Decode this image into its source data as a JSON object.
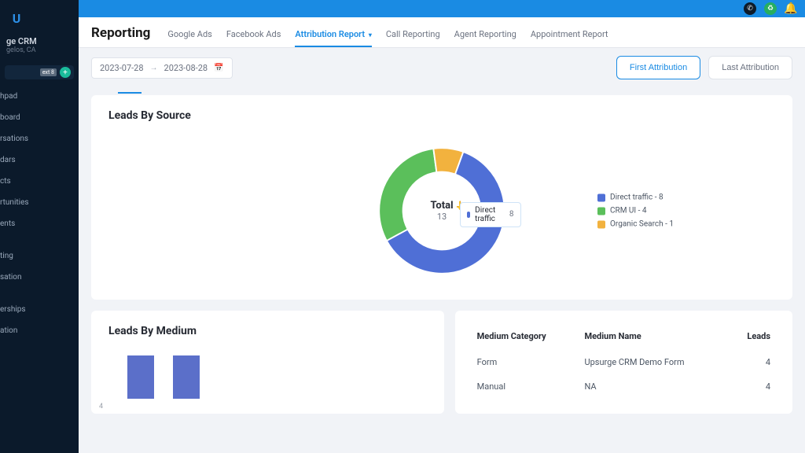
{
  "brand": {
    "initial": "U"
  },
  "account": {
    "name": "ge CRM",
    "location": "gelos, CA",
    "badge": "ext 8"
  },
  "sidebar": {
    "items": [
      {
        "label": "hpad"
      },
      {
        "label": "board"
      },
      {
        "label": "rsations"
      },
      {
        "label": "dars"
      },
      {
        "label": "cts"
      },
      {
        "label": "rtunities"
      },
      {
        "label": "ents"
      }
    ],
    "items2": [
      {
        "label": "ting"
      },
      {
        "label": "sation"
      }
    ],
    "items3": [
      {
        "label": "erships"
      },
      {
        "label": "ation"
      },
      {
        "label": ""
      }
    ]
  },
  "header": {
    "title": "Reporting",
    "tabs": [
      {
        "label": "Google Ads",
        "active": false
      },
      {
        "label": "Facebook Ads",
        "active": false
      },
      {
        "label": "Attribution Report",
        "active": true,
        "chevron": true
      },
      {
        "label": "Call Reporting",
        "active": false
      },
      {
        "label": "Agent Reporting",
        "active": false
      },
      {
        "label": "Appointment Report",
        "active": false
      }
    ]
  },
  "date_range": {
    "from": "2023-07-28",
    "to": "2023-08-28"
  },
  "attribution_buttons": {
    "first": "First Attribution",
    "last": "Last Attribution"
  },
  "leads_by_source": {
    "title": "Leads By Source",
    "type": "donut",
    "total_label": "Total",
    "total_value": 13,
    "series": [
      {
        "label": "Direct traffic",
        "value": 8,
        "color": "#4f6fd6"
      },
      {
        "label": "CRM UI",
        "value": 4,
        "color": "#5bbf5b"
      },
      {
        "label": "Organic Search",
        "value": 1,
        "color": "#f2b23e"
      }
    ],
    "tooltip": {
      "label": "Direct traffic",
      "value": 8,
      "color": "#4f6fd6"
    },
    "legend": [
      {
        "label": "Direct traffic - 8",
        "color": "#4f6fd6"
      },
      {
        "label": "CRM UI - 4",
        "color": "#5bbf5b"
      },
      {
        "label": "Organic Search - 1",
        "color": "#f2b23e"
      }
    ]
  },
  "leads_by_medium": {
    "title": "Leads By Medium",
    "type": "bar",
    "y_tick": 4,
    "bars": [
      {
        "value": 4,
        "color": "#5b6fc9"
      },
      {
        "value": 4,
        "color": "#5b6fc9"
      }
    ]
  },
  "medium_table": {
    "columns": [
      {
        "label": "Medium Category",
        "align": "left"
      },
      {
        "label": "Medium Name",
        "align": "left"
      },
      {
        "label": "Leads",
        "align": "right"
      }
    ],
    "rows": [
      [
        "Form",
        "Upsurge CRM Demo Form",
        "4"
      ],
      [
        "Manual",
        "NA",
        "4"
      ]
    ]
  },
  "colors": {
    "topbar": "#1a8be3",
    "sidebar_bg": "#0b1a2b",
    "page_bg": "#f1f3f7",
    "card_bg": "#ffffff"
  }
}
